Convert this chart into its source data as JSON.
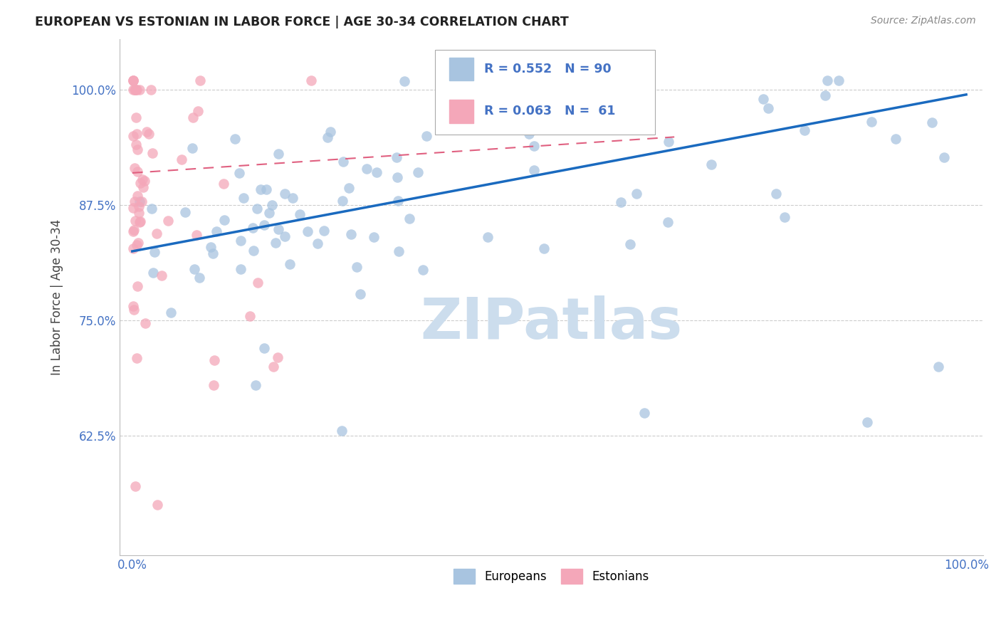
{
  "title": "EUROPEAN VS ESTONIAN IN LABOR FORCE | AGE 30-34 CORRELATION CHART",
  "source": "Source: ZipAtlas.com",
  "ylabel": "In Labor Force | Age 30-34",
  "R_european": 0.552,
  "N_european": 90,
  "R_estonian": 0.063,
  "N_estonian": 61,
  "european_color": "#a8c4e0",
  "estonian_color": "#f4a7b9",
  "european_line_color": "#1a6abf",
  "estonian_line_color": "#e06080",
  "watermark_color": "#ccdded",
  "europeans_label": "Europeans",
  "estonians_label": "Estonians",
  "axis_label_color": "#4472c4",
  "title_color": "#222222",
  "source_color": "#888888"
}
